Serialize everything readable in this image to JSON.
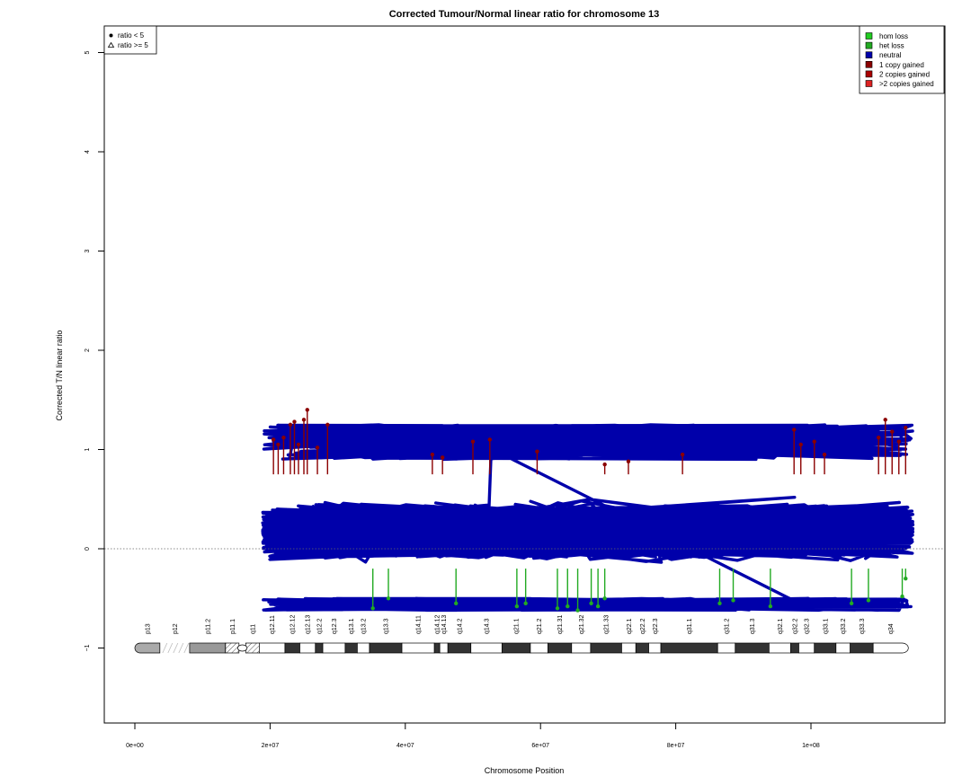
{
  "chart_data": {
    "type": "scatter",
    "title": "Corrected Tumour/Normal linear ratio for chromosome  13",
    "xlabel": "Chromosome Position",
    "ylabel": "Corrected T/N linear ratio",
    "xlim": [
      -5000000,
      119000000
    ],
    "ylim": [
      -1.8,
      5.3
    ],
    "x_ticks": [
      0,
      20000000,
      40000000,
      60000000,
      80000000,
      100000000
    ],
    "x_tick_labels": [
      "0e+00",
      "2e+07",
      "4e+07",
      "6e+07",
      "8e+07",
      "1e+08"
    ],
    "y_ticks": [
      -1,
      0,
      1,
      2,
      3,
      4,
      5
    ],
    "y_tick_labels": [
      "−1",
      "0",
      "1",
      "2",
      "3",
      "4",
      "5"
    ],
    "reference_line": {
      "y": 0,
      "style": "dotted"
    },
    "grid": false,
    "shape_legend": {
      "placement": "top-left",
      "entries": [
        {
          "symbol": "filled-circle",
          "label": "ratio < 5"
        },
        {
          "symbol": "open-triangle",
          "label": "ratio >= 5"
        }
      ]
    },
    "color_legend": {
      "placement": "top-right",
      "entries": [
        {
          "label": "hom loss",
          "color": "#22cc22"
        },
        {
          "label": "het loss",
          "color": "#22aa22"
        },
        {
          "label": "neutral",
          "color": "#0000aa"
        },
        {
          "label": "1 copy gained",
          "color": "#8b0000"
        },
        {
          "label": "2 copies gained",
          "color": "#aa0000"
        },
        {
          "label": ">2 copies gained",
          "color": "#dd2222"
        }
      ]
    },
    "data_extent": {
      "x_start": 18900000,
      "x_end": 115100000,
      "neutral_band": [
        -0.5,
        0.9
      ]
    },
    "series": [
      {
        "label": "neutral",
        "color": "#0000aa",
        "note": "dense cloud of points between about -0.5 and 0.9"
      },
      {
        "label": "1 copy gained",
        "color": "#8b0000",
        "points": [
          [
            20500000,
            1.1
          ],
          [
            21200000,
            1.05
          ],
          [
            22000000,
            1.12
          ],
          [
            23000000,
            1.25
          ],
          [
            23600000,
            1.28
          ],
          [
            24200000,
            1.05
          ],
          [
            25000000,
            1.3
          ],
          [
            25500000,
            1.4
          ],
          [
            27000000,
            1.02
          ],
          [
            28500000,
            1.25
          ],
          [
            44000000,
            0.95
          ],
          [
            45500000,
            0.92
          ],
          [
            50000000,
            1.08
          ],
          [
            52500000,
            1.1
          ],
          [
            59500000,
            0.98
          ],
          [
            69500000,
            0.85
          ],
          [
            73000000,
            0.88
          ],
          [
            81000000,
            0.95
          ],
          [
            97500000,
            1.2
          ],
          [
            98500000,
            1.05
          ],
          [
            100500000,
            1.08
          ],
          [
            102000000,
            0.95
          ],
          [
            110000000,
            1.12
          ],
          [
            111000000,
            1.3
          ],
          [
            112000000,
            1.18
          ],
          [
            113000000,
            1.08
          ],
          [
            114000000,
            1.22
          ]
        ]
      },
      {
        "label": "het loss",
        "color": "#22aa22",
        "points": [
          [
            35200000,
            -0.6
          ],
          [
            37500000,
            -0.5
          ],
          [
            47500000,
            -0.55
          ],
          [
            56500000,
            -0.58
          ],
          [
            57800000,
            -0.55
          ],
          [
            62500000,
            -0.6
          ],
          [
            64000000,
            -0.58
          ],
          [
            65500000,
            -0.62
          ],
          [
            67500000,
            -0.55
          ],
          [
            68500000,
            -0.58
          ],
          [
            69500000,
            -0.5
          ],
          [
            86500000,
            -0.55
          ],
          [
            88500000,
            -0.52
          ],
          [
            94000000,
            -0.58
          ],
          [
            106000000,
            -0.55
          ],
          [
            108500000,
            -0.52
          ],
          [
            113500000,
            -0.48
          ],
          [
            114000000,
            -0.3
          ]
        ]
      }
    ],
    "ideogram": {
      "y": -1,
      "bands": [
        {
          "name": "p13",
          "start": 0,
          "end": 3700000,
          "fill": "#aaaaaa",
          "shape": "cap-left"
        },
        {
          "name": "p12",
          "start": 3700000,
          "end": 8100000,
          "fill": "#ffffff",
          "shape": "stalk"
        },
        {
          "name": "p11.2",
          "start": 8100000,
          "end": 13400000,
          "fill": "#999999"
        },
        {
          "name": "p11.1",
          "start": 13400000,
          "end": 15400000,
          "fill": "#ffffff",
          "shape": "hatch"
        },
        {
          "name": "q11",
          "start": 16400000,
          "end": 18400000,
          "fill": "#ffffff",
          "shape": "hatch"
        },
        {
          "name": "q12.11",
          "start": 18400000,
          "end": 22200000,
          "fill": "#ffffff"
        },
        {
          "name": "q12.12",
          "start": 22200000,
          "end": 24400000,
          "fill": "#333333"
        },
        {
          "name": "q12.13",
          "start": 24400000,
          "end": 26700000,
          "fill": "#ffffff"
        },
        {
          "name": "q12.2",
          "start": 26700000,
          "end": 27800000,
          "fill": "#333333"
        },
        {
          "name": "q12.3",
          "start": 27800000,
          "end": 31100000,
          "fill": "#ffffff"
        },
        {
          "name": "q13.1",
          "start": 31100000,
          "end": 32900000,
          "fill": "#333333"
        },
        {
          "name": "q13.2",
          "start": 32900000,
          "end": 34700000,
          "fill": "#ffffff"
        },
        {
          "name": "q13.3",
          "start": 34700000,
          "end": 39500000,
          "fill": "#333333"
        },
        {
          "name": "q14.11",
          "start": 39500000,
          "end": 44300000,
          "fill": "#ffffff"
        },
        {
          "name": "q14.12",
          "start": 44300000,
          "end": 45100000,
          "fill": "#333333"
        },
        {
          "name": "q14.13",
          "start": 45100000,
          "end": 46300000,
          "fill": "#ffffff"
        },
        {
          "name": "q14.2",
          "start": 46300000,
          "end": 49700000,
          "fill": "#333333"
        },
        {
          "name": "q14.3",
          "start": 49700000,
          "end": 54300000,
          "fill": "#ffffff"
        },
        {
          "name": "q21.1",
          "start": 54300000,
          "end": 58500000,
          "fill": "#333333"
        },
        {
          "name": "q21.2",
          "start": 58500000,
          "end": 61100000,
          "fill": "#ffffff"
        },
        {
          "name": "q21.31",
          "start": 61100000,
          "end": 64600000,
          "fill": "#333333"
        },
        {
          "name": "q21.32",
          "start": 64600000,
          "end": 67400000,
          "fill": "#ffffff"
        },
        {
          "name": "q21.33",
          "start": 67400000,
          "end": 72000000,
          "fill": "#333333"
        },
        {
          "name": "q22.1",
          "start": 72000000,
          "end": 74100000,
          "fill": "#ffffff"
        },
        {
          "name": "q22.2",
          "start": 74100000,
          "end": 76000000,
          "fill": "#333333"
        },
        {
          "name": "q22.3",
          "start": 76000000,
          "end": 77800000,
          "fill": "#ffffff"
        },
        {
          "name": "q31.1",
          "start": 77800000,
          "end": 86200000,
          "fill": "#333333"
        },
        {
          "name": "q31.2",
          "start": 86200000,
          "end": 88800000,
          "fill": "#ffffff"
        },
        {
          "name": "q31.3",
          "start": 88800000,
          "end": 93800000,
          "fill": "#333333"
        },
        {
          "name": "q32.1",
          "start": 93800000,
          "end": 97000000,
          "fill": "#ffffff"
        },
        {
          "name": "q32.2",
          "start": 97000000,
          "end": 98200000,
          "fill": "#333333"
        },
        {
          "name": "q32.3",
          "start": 98200000,
          "end": 100500000,
          "fill": "#ffffff"
        },
        {
          "name": "q33.1",
          "start": 100500000,
          "end": 103700000,
          "fill": "#333333"
        },
        {
          "name": "q33.2",
          "start": 103700000,
          "end": 105800000,
          "fill": "#ffffff"
        },
        {
          "name": "q33.3",
          "start": 105800000,
          "end": 109200000,
          "fill": "#333333"
        },
        {
          "name": "q34",
          "start": 109200000,
          "end": 114400000,
          "fill": "#ffffff",
          "shape": "cap-right"
        }
      ]
    }
  }
}
